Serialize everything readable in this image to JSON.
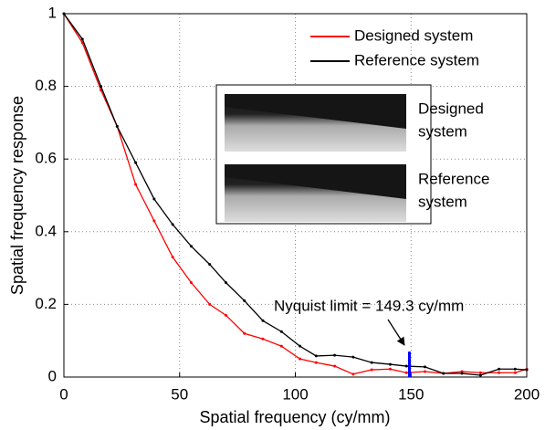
{
  "chart_data": {
    "type": "line",
    "xlabel": "Spatial frequency (cy/mm)",
    "ylabel": "Spatial frequency response",
    "x": [
      0,
      8,
      16,
      23,
      31,
      39,
      47,
      55,
      63,
      70,
      78,
      86,
      94,
      102,
      109,
      117,
      125,
      133,
      141,
      148,
      156,
      164,
      172,
      180,
      188,
      195,
      200
    ],
    "series": [
      {
        "name": "Designed system",
        "color": "#ff0000",
        "values": [
          1,
          0.92,
          0.79,
          0.69,
          0.53,
          0.43,
          0.33,
          0.26,
          0.2,
          0.17,
          0.12,
          0.105,
          0.085,
          0.05,
          0.04,
          0.03,
          0.008,
          0.02,
          0.022,
          0.012,
          0.015,
          0.01,
          0.015,
          0.012,
          0.012,
          0.012,
          0.022
        ]
      },
      {
        "name": "Reference system",
        "color": "#000000",
        "values": [
          1,
          0.93,
          0.8,
          0.69,
          0.59,
          0.49,
          0.42,
          0.36,
          0.31,
          0.26,
          0.21,
          0.155,
          0.125,
          0.085,
          0.058,
          0.06,
          0.055,
          0.04,
          0.035,
          0.03,
          0.028,
          0.01,
          0.01,
          0.005,
          0.022,
          0.022,
          0.02
        ]
      }
    ],
    "xlim": [
      0,
      200
    ],
    "xticks": [
      0,
      50,
      100,
      150,
      200
    ],
    "ylim": [
      0,
      1
    ],
    "yticks": [
      0,
      0.2,
      0.4,
      0.6,
      0.8,
      1
    ],
    "grid": true,
    "legend": "upper right",
    "nyquist": {
      "x": 149.3,
      "height": 0.07,
      "color": "#0000ff",
      "label": "Nyquist limit = 149.3 cy/mm"
    },
    "inset": {
      "panels": [
        {
          "label": [
            "Designed",
            "system"
          ]
        },
        {
          "label": [
            "Reference",
            "system"
          ]
        }
      ]
    }
  }
}
